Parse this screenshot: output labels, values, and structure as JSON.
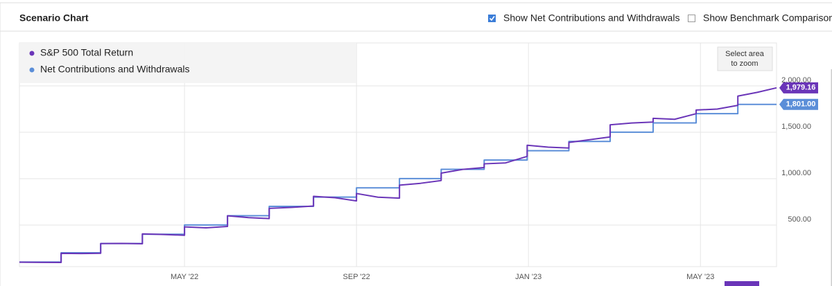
{
  "header": {
    "title": "Scenario Chart",
    "options": [
      {
        "label": "Show Net Contributions and Withdrawals",
        "checked": true
      },
      {
        "label": "Show Benchmark Comparison",
        "checked": false
      }
    ]
  },
  "zoom_button": [
    "Select area",
    "to zoom"
  ],
  "chart_data": {
    "type": "line",
    "x": [
      0.16,
      0.65,
      1.13,
      1.13,
      1.59,
      2.05,
      2.05,
      2.54,
      3.02,
      3.02,
      3.51,
      4.0,
      4.0,
      4.5,
      5.0,
      5.0,
      5.49,
      5.97,
      5.97,
      6.49,
      7.0,
      7.0,
      7.5,
      8.0,
      8.0,
      8.5,
      9.0,
      9.0,
      9.49,
      9.97,
      9.97,
      10.47,
      10.97,
      10.97,
      11.47,
      11.97,
      11.97,
      12.46,
      12.94,
      12.94,
      13.42,
      13.9,
      13.9,
      14.4,
      14.9,
      14.9,
      15.4,
      15.9,
      15.9,
      16.39,
      16.87,
      16.87,
      17.32,
      17.77
    ],
    "xlim": [
      0.16,
      17.77
    ],
    "xticks": [
      {
        "value": 4,
        "label": "MAY '22"
      },
      {
        "value": 8,
        "label": "SEP '22"
      },
      {
        "value": 12,
        "label": "JAN '23"
      },
      {
        "value": 16,
        "label": "MAY '23"
      }
    ],
    "ylim": [
      52,
      2463
    ],
    "yticks": [
      {
        "value": 500,
        "label": "500.00"
      },
      {
        "value": 1000,
        "label": "1,000.00"
      },
      {
        "value": 1500,
        "label": "1,500.00"
      },
      {
        "value": 2000,
        "label": "2,000.00"
      }
    ],
    "grid": true,
    "series": [
      {
        "name": "S&P 500 Total Return",
        "color": "#6a35b8",
        "values": [
          100,
          98,
          97,
          195,
          193,
          196,
          300,
          302,
          298,
          405,
          398,
          390,
          480,
          470,
          485,
          600,
          580,
          570,
          680,
          690,
          705,
          810,
          795,
          760,
          840,
          800,
          790,
          930,
          950,
          980,
          1060,
          1100,
          1120,
          1160,
          1170,
          1240,
          1360,
          1340,
          1330,
          1390,
          1420,
          1450,
          1580,
          1600,
          1610,
          1650,
          1640,
          1700,
          1740,
          1750,
          1790,
          1890,
          1930,
          1979.16
        ],
        "value_labels": [
          null,
          null,
          null,
          null,
          null,
          null,
          null,
          null,
          null,
          null,
          null,
          null,
          null,
          null,
          null,
          null,
          null,
          null,
          null,
          null,
          null,
          null,
          null,
          null,
          null,
          null,
          null,
          null,
          null,
          null,
          null,
          null,
          null,
          null,
          null,
          null,
          null,
          null,
          null,
          null,
          null,
          null,
          null,
          null,
          null,
          null,
          null,
          null,
          null,
          null,
          null,
          null,
          null,
          "1,979.16"
        ]
      },
      {
        "name": "Net Contributions and Withdrawals",
        "color": "#5b8ed8",
        "values": [
          101,
          101,
          101,
          201,
          201,
          201,
          301,
          301,
          301,
          401,
          401,
          401,
          501,
          501,
          501,
          601,
          601,
          601,
          701,
          701,
          701,
          801,
          801,
          801,
          901,
          901,
          901,
          1001,
          1001,
          1001,
          1101,
          1101,
          1101,
          1201,
          1201,
          1201,
          1301,
          1301,
          1301,
          1401,
          1401,
          1401,
          1501,
          1501,
          1501,
          1601,
          1601,
          1601,
          1701,
          1701,
          1701,
          1801,
          1801,
          1801
        ],
        "value_labels": [
          null,
          null,
          null,
          null,
          null,
          null,
          null,
          null,
          null,
          null,
          null,
          null,
          null,
          null,
          null,
          null,
          null,
          null,
          null,
          null,
          null,
          null,
          null,
          null,
          null,
          null,
          null,
          null,
          null,
          null,
          null,
          null,
          null,
          null,
          null,
          null,
          null,
          null,
          null,
          null,
          null,
          null,
          null,
          null,
          null,
          null,
          null,
          null,
          null,
          null,
          null,
          null,
          null,
          "1,801.00"
        ]
      }
    ]
  }
}
